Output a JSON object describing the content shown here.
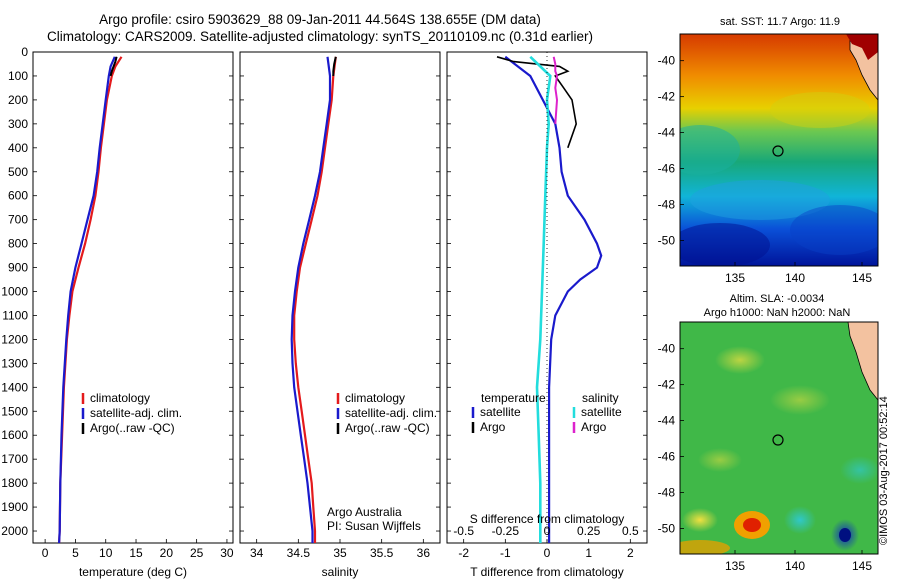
{
  "title_line1": "Argo profile: csiro 5903629_88 09-Jan-2011 44.564S 138.655E (DM data)",
  "title_line2": "Climatology: CARS2009. Satellite-adjusted climatology: synTS_20110109.nc (0.31d earlier)",
  "depth_ticks": [
    0,
    100,
    200,
    300,
    400,
    500,
    600,
    700,
    800,
    900,
    1000,
    1100,
    1200,
    1300,
    1400,
    1500,
    1600,
    1700,
    1800,
    1900,
    2000
  ],
  "colors": {
    "climatology": "#e41a1c",
    "satellite": "#1a1acc",
    "argo": "#000000",
    "sat_salinity": "#22dddd",
    "argo_salinity": "#dd22cc"
  },
  "chart_data": [
    {
      "type": "line",
      "xlabel": "temperature (deg C)",
      "xlim": [
        -2,
        31
      ],
      "ylim": [
        0,
        2050
      ],
      "xticks": [
        0,
        5,
        10,
        15,
        20,
        25,
        30
      ],
      "legend": [
        "climatology",
        "satellite-adj. clim.",
        "Argo(..raw -QC)"
      ],
      "series": [
        {
          "name": "climatology",
          "depth": [
            20,
            60,
            100,
            200,
            300,
            400,
            500,
            600,
            700,
            800,
            900,
            1000,
            1100,
            1200,
            1400,
            1600,
            1800,
            2000,
            2050
          ],
          "values": [
            12.6,
            11.6,
            11.0,
            10.2,
            9.7,
            9.2,
            8.8,
            8.3,
            7.5,
            6.6,
            5.5,
            4.5,
            4.0,
            3.6,
            3.1,
            2.8,
            2.5,
            2.4,
            2.3
          ]
        },
        {
          "name": "satellite-adj. clim.",
          "depth": [
            20,
            60,
            100,
            200,
            300,
            400,
            500,
            600,
            700,
            800,
            900,
            1000,
            1100,
            1200,
            1400,
            1600,
            1800,
            2000,
            2050
          ],
          "values": [
            11.5,
            10.8,
            10.5,
            10.0,
            9.5,
            9.0,
            8.6,
            8.0,
            7.0,
            6.0,
            5.0,
            4.2,
            3.8,
            3.5,
            3.0,
            2.7,
            2.5,
            2.4,
            2.3
          ]
        },
        {
          "name": "Argo(..raw -QC)",
          "depth": [
            20,
            40,
            60,
            80,
            100
          ],
          "values": [
            11.8,
            11.6,
            11.3,
            11.0,
            10.8
          ]
        }
      ]
    },
    {
      "type": "line",
      "xlabel": "salinity",
      "xlim": [
        33.8,
        36.2
      ],
      "ylim": [
        0,
        2050
      ],
      "xticks": [
        34,
        34.5,
        35,
        35.5,
        36
      ],
      "legend": [
        "climatology",
        "satellite-adj. clim.",
        "Argo(..raw -QC)"
      ],
      "annotations": [
        "Argo Australia",
        "PI: Susan Wijffels"
      ],
      "series": [
        {
          "name": "climatology",
          "depth": [
            20,
            100,
            200,
            300,
            400,
            500,
            600,
            700,
            800,
            900,
            1000,
            1100,
            1200,
            1300,
            1400,
            1500,
            1600,
            1700,
            1800,
            1900,
            2000,
            2050
          ],
          "values": [
            34.95,
            34.92,
            34.9,
            34.86,
            34.82,
            34.78,
            34.73,
            34.66,
            34.59,
            34.52,
            34.48,
            34.45,
            34.45,
            34.47,
            34.5,
            34.54,
            34.58,
            34.62,
            34.66,
            34.68,
            34.7,
            34.7
          ]
        },
        {
          "name": "satellite-adj. clim.",
          "depth": [
            20,
            100,
            200,
            300,
            400,
            500,
            600,
            700,
            800,
            900,
            1000,
            1100,
            1200,
            1300,
            1400,
            1500,
            1600,
            1700,
            1800,
            1900,
            2000,
            2050
          ],
          "values": [
            34.85,
            34.88,
            34.88,
            34.84,
            34.8,
            34.76,
            34.7,
            34.63,
            34.56,
            34.5,
            34.46,
            34.43,
            34.42,
            34.43,
            34.45,
            34.49,
            34.53,
            34.57,
            34.61,
            34.64,
            34.67,
            34.67
          ]
        },
        {
          "name": "Argo(..raw -QC)",
          "depth": [
            20,
            50,
            80,
            100
          ],
          "values": [
            34.95,
            34.93,
            34.92,
            34.92
          ]
        }
      ]
    },
    {
      "type": "line",
      "xlabel": "T difference from climatology",
      "xlabel_top": "S difference from climatology",
      "xlim": [
        -2.4,
        2.4
      ],
      "ylim": [
        0,
        2050
      ],
      "xticks": [
        -2,
        -1,
        0,
        1,
        2
      ],
      "xticks_top": [
        "-0.5",
        "-0.25",
        "0",
        "0.25",
        "0.5"
      ],
      "legend_temperature": {
        "title": "temperature",
        "entries": [
          "satellite",
          "Argo"
        ]
      },
      "legend_salinity": {
        "title": "salinity",
        "entries": [
          "satellite",
          "Argo"
        ]
      },
      "series": [
        {
          "name": "temperature satellite",
          "depth": [
            20,
            100,
            200,
            300,
            400,
            500,
            600,
            700,
            800,
            850,
            900,
            950,
            1000,
            1100,
            1200,
            1400,
            1600,
            1800,
            2000,
            2050
          ],
          "values": [
            -1.0,
            -0.4,
            -0.1,
            0.2,
            0.3,
            0.35,
            0.5,
            0.9,
            1.2,
            1.3,
            1.2,
            0.8,
            0.5,
            0.2,
            0.1,
            0.05,
            0.05,
            0.05,
            0.05,
            0.05
          ]
        },
        {
          "name": "temperature Argo",
          "depth": [
            20,
            40,
            60,
            80,
            100,
            150,
            200,
            300,
            400
          ],
          "values": [
            -1.2,
            -0.8,
            0.3,
            0.5,
            0.2,
            0.4,
            0.6,
            0.7,
            0.5
          ]
        },
        {
          "name": "salinity satellite",
          "depth": [
            20,
            100,
            200,
            300,
            400,
            600,
            800,
            1000,
            1200,
            1400,
            1600,
            1800,
            2000,
            2050
          ],
          "values": [
            -0.1,
            0.02,
            0.0,
            0.01,
            0.0,
            -0.01,
            -0.02,
            -0.03,
            -0.04,
            -0.06,
            -0.05,
            -0.04,
            -0.04,
            -0.04
          ]
        },
        {
          "name": "salinity Argo",
          "depth": [
            20,
            50,
            80,
            100,
            150,
            200,
            300
          ],
          "values": [
            0.04,
            0.05,
            0.05,
            0.06,
            0.05,
            0.06,
            0.05
          ]
        }
      ]
    }
  ],
  "map_sst": {
    "title": "sat. SST: 11.7 Argo: 11.9",
    "lat_ticks": [
      "-40",
      "-42",
      "-44",
      "-46",
      "-48",
      "-50"
    ],
    "lon_ticks": [
      "135",
      "140",
      "145"
    ]
  },
  "map_sla": {
    "title_line1": "Altim. SLA: -0.0034",
    "title_line2": "Argo h1000: NaN h2000: NaN",
    "lat_ticks": [
      "-40",
      "-42",
      "-44",
      "-46",
      "-48",
      "-50"
    ],
    "lon_ticks": [
      "135",
      "140",
      "145"
    ]
  },
  "footer_stamp": "©IMOS 03-Aug-2017 00:52:14"
}
